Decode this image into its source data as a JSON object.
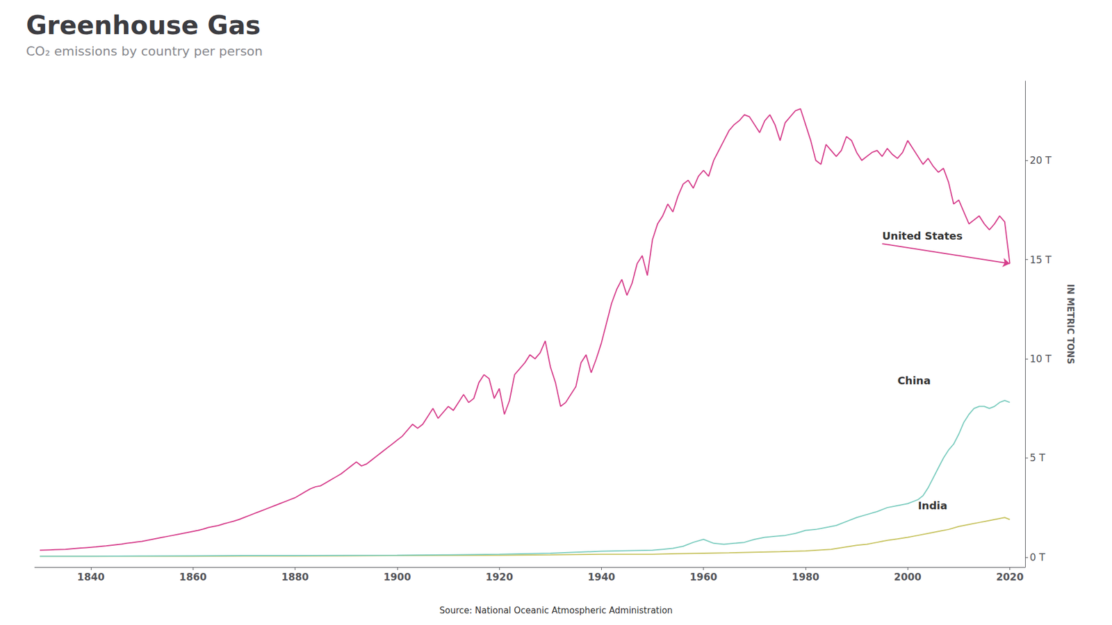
{
  "chart_data": {
    "type": "line",
    "title": "Greenhouse Gas",
    "subtitle": "CO₂ emissions by country per person",
    "source": "Source: National Oceanic Atmospheric Administration",
    "ylabel": "IN METRIC TONS",
    "grid": false,
    "xlim": [
      1829,
      2023
    ],
    "xticks": [
      1840,
      1860,
      1880,
      1900,
      1920,
      1940,
      1960,
      1980,
      2000,
      2020
    ],
    "ylim": [
      -0.5,
      24
    ],
    "yticks": [
      {
        "value": 0,
        "label": "0 T"
      },
      {
        "value": 5,
        "label": "5 T"
      },
      {
        "value": 10,
        "label": "10 T"
      },
      {
        "value": 15,
        "label": "15 T"
      },
      {
        "value": 20,
        "label": "20 T"
      }
    ],
    "series": [
      {
        "name": "United States",
        "color": "#d63f8c",
        "x": [
          1830,
          1831,
          1832,
          1833,
          1834,
          1835,
          1836,
          1837,
          1838,
          1839,
          1840,
          1841,
          1842,
          1843,
          1844,
          1845,
          1846,
          1847,
          1848,
          1849,
          1850,
          1851,
          1852,
          1853,
          1854,
          1855,
          1856,
          1857,
          1858,
          1859,
          1860,
          1861,
          1862,
          1863,
          1864,
          1865,
          1866,
          1867,
          1868,
          1869,
          1870,
          1871,
          1872,
          1873,
          1874,
          1875,
          1876,
          1877,
          1878,
          1879,
          1880,
          1881,
          1882,
          1883,
          1884,
          1885,
          1886,
          1887,
          1888,
          1889,
          1890,
          1891,
          1892,
          1893,
          1894,
          1895,
          1896,
          1897,
          1898,
          1899,
          1900,
          1901,
          1902,
          1903,
          1904,
          1905,
          1906,
          1907,
          1908,
          1909,
          1910,
          1911,
          1912,
          1913,
          1914,
          1915,
          1916,
          1917,
          1918,
          1919,
          1920,
          1921,
          1922,
          1923,
          1924,
          1925,
          1926,
          1927,
          1928,
          1929,
          1930,
          1931,
          1932,
          1933,
          1934,
          1935,
          1936,
          1937,
          1938,
          1939,
          1940,
          1941,
          1942,
          1943,
          1944,
          1945,
          1946,
          1947,
          1948,
          1949,
          1950,
          1951,
          1952,
          1953,
          1954,
          1955,
          1956,
          1957,
          1958,
          1959,
          1960,
          1961,
          1962,
          1963,
          1964,
          1965,
          1966,
          1967,
          1968,
          1969,
          1970,
          1971,
          1972,
          1973,
          1974,
          1975,
          1976,
          1977,
          1978,
          1979,
          1980,
          1981,
          1982,
          1983,
          1984,
          1985,
          1986,
          1987,
          1988,
          1989,
          1990,
          1991,
          1992,
          1993,
          1994,
          1995,
          1996,
          1997,
          1998,
          1999,
          2000,
          2001,
          2002,
          2003,
          2004,
          2005,
          2006,
          2007,
          2008,
          2009,
          2010,
          2011,
          2012,
          2013,
          2014,
          2015,
          2016,
          2017,
          2018,
          2019,
          2020
        ],
        "values": [
          0.35,
          0.36,
          0.37,
          0.38,
          0.39,
          0.4,
          0.42,
          0.44,
          0.46,
          0.48,
          0.5,
          0.52,
          0.55,
          0.57,
          0.6,
          0.63,
          0.66,
          0.7,
          0.73,
          0.77,
          0.8,
          0.85,
          0.9,
          0.95,
          1.0,
          1.05,
          1.1,
          1.15,
          1.2,
          1.25,
          1.3,
          1.35,
          1.42,
          1.5,
          1.55,
          1.6,
          1.68,
          1.75,
          1.82,
          1.9,
          2.0,
          2.1,
          2.2,
          2.3,
          2.4,
          2.5,
          2.6,
          2.7,
          2.8,
          2.9,
          3.0,
          3.15,
          3.3,
          3.45,
          3.55,
          3.6,
          3.75,
          3.9,
          4.05,
          4.2,
          4.4,
          4.6,
          4.8,
          4.6,
          4.7,
          4.9,
          5.1,
          5.3,
          5.5,
          5.7,
          5.9,
          6.1,
          6.4,
          6.7,
          6.5,
          6.7,
          7.1,
          7.5,
          7.0,
          7.3,
          7.6,
          7.4,
          7.8,
          8.2,
          7.8,
          8.0,
          8.8,
          9.2,
          9.0,
          8.0,
          8.5,
          7.2,
          7.9,
          9.2,
          9.5,
          9.8,
          10.2,
          10.0,
          10.3,
          10.9,
          9.6,
          8.8,
          7.6,
          7.8,
          8.2,
          8.6,
          9.8,
          10.2,
          9.3,
          10.0,
          10.8,
          11.8,
          12.8,
          13.5,
          14.0,
          13.2,
          13.8,
          14.8,
          15.2,
          14.2,
          16.0,
          16.8,
          17.2,
          17.8,
          17.4,
          18.2,
          18.8,
          19.0,
          18.6,
          19.2,
          19.5,
          19.2,
          20.0,
          20.5,
          21.0,
          21.5,
          21.8,
          22.0,
          22.3,
          22.2,
          21.8,
          21.4,
          22.0,
          22.3,
          21.8,
          21.0,
          21.9,
          22.2,
          22.5,
          22.6,
          21.8,
          21.0,
          20.0,
          19.8,
          20.8,
          20.5,
          20.2,
          20.5,
          21.2,
          21.0,
          20.4,
          20.0,
          20.2,
          20.4,
          20.5,
          20.2,
          20.6,
          20.3,
          20.1,
          20.4,
          21.0,
          20.6,
          20.2,
          19.8,
          20.1,
          19.7,
          19.4,
          19.6,
          18.9,
          17.8,
          18.0,
          17.4,
          16.8,
          17.0,
          17.2,
          16.8,
          16.5,
          16.8,
          17.2,
          16.9,
          14.8
        ]
      },
      {
        "name": "China",
        "color": "#7ecdc0",
        "x": [
          1830,
          1840,
          1850,
          1860,
          1870,
          1880,
          1890,
          1900,
          1910,
          1920,
          1930,
          1940,
          1950,
          1952,
          1954,
          1956,
          1958,
          1960,
          1962,
          1964,
          1966,
          1968,
          1970,
          1972,
          1974,
          1976,
          1978,
          1980,
          1982,
          1984,
          1986,
          1988,
          1990,
          1992,
          1994,
          1996,
          1998,
          2000,
          2001,
          2002,
          2003,
          2004,
          2005,
          2006,
          2007,
          2008,
          2009,
          2010,
          2011,
          2012,
          2013,
          2014,
          2015,
          2016,
          2017,
          2018,
          2019,
          2020
        ],
        "values": [
          0.05,
          0.05,
          0.06,
          0.07,
          0.08,
          0.08,
          0.09,
          0.1,
          0.12,
          0.15,
          0.2,
          0.3,
          0.35,
          0.4,
          0.45,
          0.55,
          0.75,
          0.9,
          0.7,
          0.65,
          0.7,
          0.75,
          0.9,
          1.0,
          1.05,
          1.1,
          1.2,
          1.35,
          1.4,
          1.5,
          1.6,
          1.8,
          2.0,
          2.15,
          2.3,
          2.5,
          2.6,
          2.7,
          2.8,
          2.9,
          3.1,
          3.5,
          4.0,
          4.5,
          5.0,
          5.4,
          5.7,
          6.2,
          6.8,
          7.2,
          7.5,
          7.6,
          7.6,
          7.5,
          7.6,
          7.8,
          7.9,
          7.8
        ]
      },
      {
        "name": "India",
        "color": "#c8c462",
        "x": [
          1830,
          1840,
          1850,
          1860,
          1870,
          1880,
          1890,
          1900,
          1910,
          1920,
          1930,
          1940,
          1950,
          1955,
          1960,
          1965,
          1970,
          1975,
          1980,
          1985,
          1990,
          1992,
          1994,
          1996,
          1998,
          2000,
          2002,
          2004,
          2006,
          2008,
          2010,
          2012,
          2014,
          2016,
          2017,
          2018,
          2019,
          2020
        ],
        "values": [
          0.05,
          0.05,
          0.05,
          0.05,
          0.06,
          0.06,
          0.07,
          0.08,
          0.09,
          0.1,
          0.12,
          0.15,
          0.15,
          0.18,
          0.2,
          0.22,
          0.25,
          0.28,
          0.32,
          0.4,
          0.6,
          0.65,
          0.75,
          0.85,
          0.92,
          1.0,
          1.1,
          1.2,
          1.3,
          1.4,
          1.55,
          1.65,
          1.75,
          1.85,
          1.9,
          1.95,
          2.0,
          1.9
        ]
      }
    ],
    "annotations": [
      {
        "text": "United States",
        "x": 1995,
        "y": 15.8,
        "arrow_to": [
          2020,
          14.8
        ]
      },
      {
        "text": "China",
        "x": 1998,
        "y": 8.5
      },
      {
        "text": "India",
        "x": 2002,
        "y": 2.2
      }
    ]
  }
}
